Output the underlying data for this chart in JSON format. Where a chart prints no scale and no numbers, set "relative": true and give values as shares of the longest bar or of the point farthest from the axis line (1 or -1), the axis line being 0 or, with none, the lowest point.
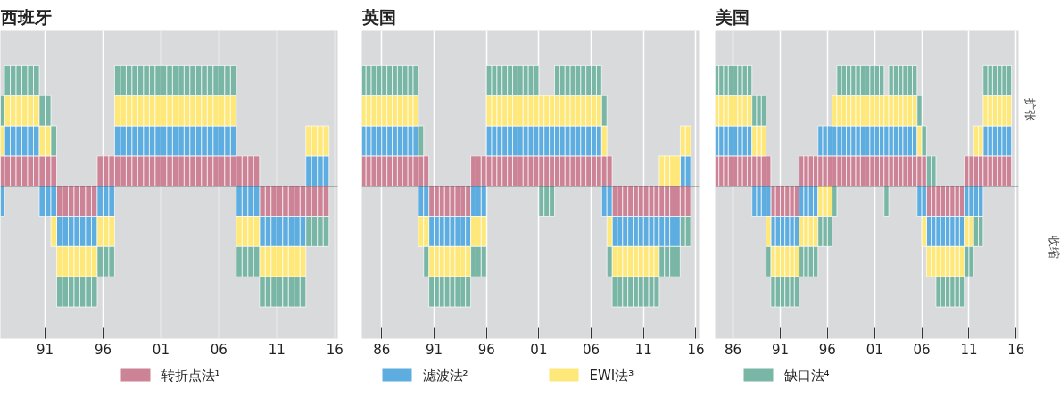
{
  "chart_data": [
    {
      "type": "bar",
      "stacked": true,
      "relative": true,
      "title": "西班牙",
      "grid": "x",
      "legend": "bottom",
      "xlim": [
        1987.15,
        2016.25
      ],
      "xticks": [
        {
          "value": 1991,
          "label": "91"
        },
        {
          "value": 1996,
          "label": "96"
        },
        {
          "value": 2001,
          "label": "01"
        },
        {
          "value": 2006,
          "label": "06"
        },
        {
          "value": 2011,
          "label": "11"
        },
        {
          "value": 2016,
          "label": "16"
        }
      ],
      "x": [
        1987.25,
        1987.75,
        1988.25,
        1988.75,
        1989.25,
        1989.75,
        1990.25,
        1990.75,
        1991.25,
        1991.75,
        1992.25,
        1992.75,
        1993.25,
        1993.75,
        1994.25,
        1994.75,
        1995.25,
        1995.75,
        1996.25,
        1996.75,
        1997.25,
        1997.75,
        1998.25,
        1998.75,
        1999.25,
        1999.75,
        2000.25,
        2000.75,
        2001.25,
        2001.75,
        2002.25,
        2002.75,
        2003.25,
        2003.75,
        2004.25,
        2004.75,
        2005.25,
        2005.75,
        2006.25,
        2006.75,
        2007.25,
        2007.75,
        2008.25,
        2008.75,
        2009.25,
        2009.75,
        2010.25,
        2010.75,
        2011.25,
        2011.75,
        2012.25,
        2012.75,
        2013.25,
        2013.75,
        2014.25,
        2014.75,
        2015.25
      ],
      "series": [
        {
          "name": "转折点法¹",
          "color": "#cd8396",
          "values": [
            0.25,
            0.25,
            0.25,
            0.25,
            0.25,
            0.25,
            0.25,
            0.25,
            0.25,
            0.25,
            -0.25,
            -0.25,
            -0.25,
            -0.25,
            -0.25,
            -0.25,
            -0.25,
            0.25,
            0.25,
            0.25,
            0.25,
            0.25,
            0.25,
            0.25,
            0.25,
            0.25,
            0.25,
            0.25,
            0.25,
            0.25,
            0.25,
            0.25,
            0.25,
            0.25,
            0.25,
            0.25,
            0.25,
            0.25,
            0.25,
            0.25,
            0.25,
            0.25,
            0.25,
            0.25,
            0.25,
            -0.25,
            -0.25,
            -0.25,
            -0.25,
            -0.25,
            -0.25,
            -0.25,
            -0.25,
            -0.25,
            -0.25,
            -0.25,
            -0.25
          ]
        },
        {
          "name": "滤波法²",
          "color": "#5dade0",
          "values": [
            -0.25,
            0.25,
            0.25,
            0.25,
            0.25,
            0.25,
            0.25,
            -0.25,
            -0.25,
            -0.25,
            -0.25,
            -0.25,
            -0.25,
            -0.25,
            -0.25,
            -0.25,
            -0.25,
            -0.25,
            -0.25,
            -0.25,
            0.25,
            0.25,
            0.25,
            0.25,
            0.25,
            0.25,
            0.25,
            0.25,
            0.25,
            0.25,
            0.25,
            0.25,
            0.25,
            0.25,
            0.25,
            0.25,
            0.25,
            0.25,
            0.25,
            0.25,
            0.25,
            -0.25,
            -0.25,
            -0.25,
            -0.25,
            -0.25,
            -0.25,
            -0.25,
            -0.25,
            -0.25,
            -0.25,
            -0.25,
            -0.25,
            0.25,
            0.25,
            0.25,
            0.25
          ]
        },
        {
          "name": "EWI法³",
          "color": "#ffe87a",
          "values": [
            0.25,
            0.25,
            0.25,
            0.25,
            0.25,
            0.25,
            0.25,
            0.25,
            0.25,
            -0.25,
            -0.25,
            -0.25,
            -0.25,
            -0.25,
            -0.25,
            -0.25,
            -0.25,
            -0.25,
            -0.25,
            -0.25,
            0.25,
            0.25,
            0.25,
            0.25,
            0.25,
            0.25,
            0.25,
            0.25,
            0.25,
            0.25,
            0.25,
            0.25,
            0.25,
            0.25,
            0.25,
            0.25,
            0.25,
            0.25,
            0.25,
            0.25,
            0.25,
            -0.25,
            -0.25,
            -0.25,
            -0.25,
            -0.25,
            -0.25,
            -0.25,
            -0.25,
            -0.25,
            -0.25,
            -0.25,
            -0.25,
            0.25,
            0.25,
            0.25,
            0.25
          ]
        },
        {
          "name": "缺口法⁴",
          "color": "#7ab6a5",
          "values": [
            0.25,
            0.25,
            0.25,
            0.25,
            0.25,
            0.25,
            0.25,
            0.25,
            0.25,
            0.25,
            -0.25,
            -0.25,
            -0.25,
            -0.25,
            -0.25,
            -0.25,
            -0.25,
            -0.25,
            -0.25,
            -0.25,
            0.25,
            0.25,
            0.25,
            0.25,
            0.25,
            0.25,
            0.25,
            0.25,
            0.25,
            0.25,
            0.25,
            0.25,
            0.25,
            0.25,
            0.25,
            0.25,
            0.25,
            0.25,
            0.25,
            0.25,
            0.25,
            -0.25,
            -0.25,
            -0.25,
            -0.25,
            -0.25,
            -0.25,
            -0.25,
            -0.25,
            -0.25,
            -0.25,
            -0.25,
            -0.25,
            -0.25,
            -0.25,
            -0.25,
            -0.25
          ]
        }
      ]
    },
    {
      "type": "bar",
      "stacked": true,
      "relative": true,
      "title": "英国",
      "grid": "x",
      "xlim": [
        1984.1,
        2016.3
      ],
      "xticks": [
        {
          "value": 1986,
          "label": "86"
        },
        {
          "value": 1991,
          "label": "91"
        },
        {
          "value": 1996,
          "label": "96"
        },
        {
          "value": 2001,
          "label": "01"
        },
        {
          "value": 2006,
          "label": "06"
        },
        {
          "value": 2011,
          "label": "11"
        },
        {
          "value": 2016,
          "label": "16"
        }
      ],
      "x": [
        1984.25,
        1984.75,
        1985.25,
        1985.75,
        1986.25,
        1986.75,
        1987.25,
        1987.75,
        1988.25,
        1988.75,
        1989.25,
        1989.75,
        1990.25,
        1990.75,
        1991.25,
        1991.75,
        1992.25,
        1992.75,
        1993.25,
        1993.75,
        1994.25,
        1994.75,
        1995.25,
        1995.75,
        1996.25,
        1996.75,
        1997.25,
        1997.75,
        1998.25,
        1998.75,
        1999.25,
        1999.75,
        2000.25,
        2000.75,
        2001.25,
        2001.75,
        2002.25,
        2002.75,
        2003.25,
        2003.75,
        2004.25,
        2004.75,
        2005.25,
        2005.75,
        2006.25,
        2006.75,
        2007.25,
        2007.75,
        2008.25,
        2008.75,
        2009.25,
        2009.75,
        2010.25,
        2010.75,
        2011.25,
        2011.75,
        2012.25,
        2012.75,
        2013.25,
        2013.75,
        2014.25,
        2014.75,
        2015.25
      ],
      "series": [
        {
          "color": "#cd8396",
          "values": [
            0.25,
            0.25,
            0.25,
            0.25,
            0.25,
            0.25,
            0.25,
            0.25,
            0.25,
            0.25,
            0.25,
            0.25,
            0.25,
            -0.25,
            -0.25,
            -0.25,
            -0.25,
            -0.25,
            -0.25,
            -0.25,
            -0.25,
            0.25,
            0.25,
            0.25,
            0.25,
            0.25,
            0.25,
            0.25,
            0.25,
            0.25,
            0.25,
            0.25,
            0.25,
            0.25,
            0.25,
            0.25,
            0.25,
            0.25,
            0.25,
            0.25,
            0.25,
            0.25,
            0.25,
            0.25,
            0.25,
            0.25,
            0.25,
            0.25,
            -0.25,
            -0.25,
            -0.25,
            -0.25,
            -0.25,
            -0.25,
            -0.25,
            -0.25,
            -0.25,
            -0.25,
            -0.25,
            -0.25,
            -0.25,
            -0.25,
            -0.25
          ]
        },
        {
          "color": "#5dade0",
          "values": [
            0.25,
            0.25,
            0.25,
            0.25,
            0.25,
            0.25,
            0.25,
            0.25,
            0.25,
            0.25,
            0.25,
            -0.25,
            -0.25,
            -0.25,
            -0.25,
            -0.25,
            -0.25,
            -0.25,
            -0.25,
            -0.25,
            -0.25,
            -0.25,
            -0.25,
            -0.25,
            0.25,
            0.25,
            0.25,
            0.25,
            0.25,
            0.25,
            0.25,
            0.25,
            0.25,
            0.25,
            0.25,
            0.25,
            0.25,
            0.25,
            0.25,
            0.25,
            0.25,
            0.25,
            0.25,
            0.25,
            0.25,
            0.25,
            -0.25,
            -0.25,
            -0.25,
            -0.25,
            -0.25,
            -0.25,
            -0.25,
            -0.25,
            -0.25,
            -0.25,
            -0.25,
            -0.25,
            -0.25,
            -0.25,
            -0.25,
            0.25,
            0.25
          ]
        },
        {
          "color": "#ffe87a",
          "values": [
            0.25,
            0.25,
            0.25,
            0.25,
            0.25,
            0.25,
            0.25,
            0.25,
            0.25,
            0.25,
            0.25,
            -0.25,
            -0.25,
            -0.25,
            -0.25,
            -0.25,
            -0.25,
            -0.25,
            -0.25,
            -0.25,
            -0.25,
            -0.25,
            -0.25,
            -0.25,
            0.25,
            0.25,
            0.25,
            0.25,
            0.25,
            0.25,
            0.25,
            0.25,
            0.25,
            0.25,
            0.25,
            0.25,
            0.25,
            0.25,
            0.25,
            0.25,
            0.25,
            0.25,
            0.25,
            0.25,
            0.25,
            0.25,
            0.25,
            -0.25,
            -0.25,
            -0.25,
            -0.25,
            -0.25,
            -0.25,
            -0.25,
            -0.25,
            -0.25,
            -0.25,
            0.25,
            0.25,
            0.25,
            0.25,
            0.25,
            0.25
          ]
        },
        {
          "color": "#7ab6a5",
          "values": [
            0.25,
            0.25,
            0.25,
            0.25,
            0.25,
            0.25,
            0.25,
            0.25,
            0.25,
            0.25,
            0.25,
            0.25,
            -0.25,
            -0.25,
            -0.25,
            -0.25,
            -0.25,
            -0.25,
            -0.25,
            -0.25,
            -0.25,
            -0.25,
            -0.25,
            -0.25,
            0.25,
            0.25,
            0.25,
            0.25,
            0.25,
            0.25,
            0.25,
            0.25,
            0.25,
            0.25,
            -0.25,
            -0.25,
            -0.25,
            0.25,
            0.25,
            0.25,
            0.25,
            0.25,
            0.25,
            0.25,
            0.25,
            0.25,
            0.25,
            -0.25,
            -0.25,
            -0.25,
            -0.25,
            -0.25,
            -0.25,
            -0.25,
            -0.25,
            -0.25,
            -0.25,
            -0.25,
            -0.25,
            -0.25,
            -0.25,
            -0.25,
            -0.25
          ]
        }
      ]
    },
    {
      "type": "bar",
      "stacked": true,
      "relative": true,
      "title": "美国",
      "grid": "x",
      "xlim": [
        1984.1,
        2016.25
      ],
      "annotations": [
        "扩张",
        "收缩"
      ],
      "xticks": [
        {
          "value": 1986,
          "label": "86"
        },
        {
          "value": 1991,
          "label": "91"
        },
        {
          "value": 1996,
          "label": "96"
        },
        {
          "value": 2001,
          "label": "01"
        },
        {
          "value": 2006,
          "label": "06"
        },
        {
          "value": 2011,
          "label": "11"
        },
        {
          "value": 2016,
          "label": "16"
        }
      ],
      "x": [
        1984.25,
        1984.75,
        1985.25,
        1985.75,
        1986.25,
        1986.75,
        1987.25,
        1987.75,
        1988.25,
        1988.75,
        1989.25,
        1989.75,
        1990.25,
        1990.75,
        1991.25,
        1991.75,
        1992.25,
        1992.75,
        1993.25,
        1993.75,
        1994.25,
        1994.75,
        1995.25,
        1995.75,
        1996.25,
        1996.75,
        1997.25,
        1997.75,
        1998.25,
        1998.75,
        1999.25,
        1999.75,
        2000.25,
        2000.75,
        2001.25,
        2001.75,
        2002.25,
        2002.75,
        2003.25,
        2003.75,
        2004.25,
        2004.75,
        2005.25,
        2005.75,
        2006.25,
        2006.75,
        2007.25,
        2007.75,
        2008.25,
        2008.75,
        2009.25,
        2009.75,
        2010.25,
        2010.75,
        2011.25,
        2011.75,
        2012.25,
        2012.75,
        2013.25,
        2013.75,
        2014.25,
        2014.75,
        2015.25
      ],
      "series": [
        {
          "color": "#cd8396",
          "values": [
            0.25,
            0.25,
            0.25,
            0.25,
            0.25,
            0.25,
            0.25,
            0.25,
            0.25,
            0.25,
            0.25,
            0.25,
            -0.25,
            -0.25,
            -0.25,
            -0.25,
            -0.25,
            -0.25,
            0.25,
            0.25,
            0.25,
            0.25,
            0.25,
            0.25,
            0.25,
            0.25,
            0.25,
            0.25,
            0.25,
            0.25,
            0.25,
            0.25,
            0.25,
            0.25,
            0.25,
            0.25,
            0.25,
            0.25,
            0.25,
            0.25,
            0.25,
            0.25,
            0.25,
            0.25,
            0.25,
            -0.25,
            -0.25,
            -0.25,
            -0.25,
            -0.25,
            -0.25,
            -0.25,
            -0.25,
            0.25,
            0.25,
            0.25,
            0.25,
            0.25,
            0.25,
            0.25,
            0.25,
            0.25,
            0.25
          ]
        },
        {
          "color": "#5dade0",
          "values": [
            0.25,
            0.25,
            0.25,
            0.25,
            0.25,
            0.25,
            0.25,
            0.25,
            -0.25,
            -0.25,
            -0.25,
            -0.25,
            -0.25,
            -0.25,
            -0.25,
            -0.25,
            -0.25,
            -0.25,
            -0.25,
            -0.25,
            -0.25,
            -0.25,
            0.25,
            0.25,
            0.25,
            0.25,
            0.25,
            0.25,
            0.25,
            0.25,
            0.25,
            0.25,
            0.25,
            0.25,
            0.25,
            0.25,
            0.25,
            0.25,
            0.25,
            0.25,
            0.25,
            0.25,
            0.25,
            -0.25,
            -0.25,
            -0.25,
            -0.25,
            -0.25,
            -0.25,
            -0.25,
            -0.25,
            -0.25,
            -0.25,
            -0.25,
            -0.25,
            -0.25,
            -0.25,
            0.25,
            0.25,
            0.25,
            0.25,
            0.25,
            0.25
          ]
        },
        {
          "color": "#ffe87a",
          "values": [
            0.25,
            0.25,
            0.25,
            0.25,
            0.25,
            0.25,
            0.25,
            0.25,
            0.25,
            0.25,
            0.25,
            -0.25,
            -0.25,
            -0.25,
            -0.25,
            -0.25,
            -0.25,
            -0.25,
            -0.25,
            -0.25,
            -0.25,
            -0.25,
            -0.25,
            -0.25,
            -0.25,
            0.25,
            0.25,
            0.25,
            0.25,
            0.25,
            0.25,
            0.25,
            0.25,
            0.25,
            0.25,
            0.25,
            0.25,
            0.25,
            0.25,
            0.25,
            0.25,
            0.25,
            0.25,
            0.25,
            -0.25,
            -0.25,
            -0.25,
            -0.25,
            -0.25,
            -0.25,
            -0.25,
            -0.25,
            -0.25,
            -0.25,
            -0.25,
            0.25,
            0.25,
            0.25,
            0.25,
            0.25,
            0.25,
            0.25,
            0.25
          ]
        },
        {
          "color": "#7ab6a5",
          "values": [
            0.25,
            0.25,
            0.25,
            0.25,
            0.25,
            0.25,
            0.25,
            0.25,
            0.25,
            0.25,
            0.25,
            -0.25,
            -0.25,
            -0.25,
            -0.25,
            -0.25,
            -0.25,
            -0.25,
            -0.25,
            -0.25,
            -0.25,
            -0.25,
            -0.25,
            -0.25,
            -0.25,
            -0.25,
            0.25,
            0.25,
            0.25,
            0.25,
            0.25,
            0.25,
            0.25,
            0.25,
            0.25,
            0.25,
            -0.25,
            0.25,
            0.25,
            0.25,
            0.25,
            0.25,
            0.25,
            0.25,
            0.25,
            0.25,
            0.25,
            -0.25,
            -0.25,
            -0.25,
            -0.25,
            -0.25,
            -0.25,
            -0.25,
            -0.25,
            -0.25,
            -0.25,
            0.25,
            0.25,
            0.25,
            0.25,
            0.25,
            0.25
          ]
        }
      ]
    }
  ]
}
